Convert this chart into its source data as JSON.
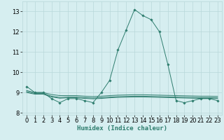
{
  "x": [
    0,
    1,
    2,
    3,
    4,
    5,
    6,
    7,
    8,
    9,
    10,
    11,
    12,
    13,
    14,
    15,
    16,
    17,
    18,
    19,
    20,
    21,
    22,
    23
  ],
  "y_main": [
    9.3,
    9.0,
    9.0,
    8.7,
    8.5,
    8.7,
    8.7,
    8.6,
    8.5,
    9.0,
    9.6,
    11.1,
    12.1,
    13.1,
    12.8,
    12.6,
    12.0,
    10.4,
    8.6,
    8.5,
    8.6,
    8.7,
    8.7,
    8.6
  ],
  "y_flat1": [
    9.1,
    9.0,
    9.0,
    8.9,
    8.85,
    8.85,
    8.85,
    8.82,
    8.8,
    8.82,
    8.85,
    8.87,
    8.88,
    8.89,
    8.89,
    8.88,
    8.87,
    8.86,
    8.85,
    8.84,
    8.83,
    8.82,
    8.82,
    8.81
  ],
  "y_flat2": [
    9.05,
    8.95,
    8.95,
    8.82,
    8.76,
    8.78,
    8.78,
    8.75,
    8.73,
    8.75,
    8.78,
    8.8,
    8.81,
    8.82,
    8.82,
    8.81,
    8.8,
    8.79,
    8.78,
    8.77,
    8.76,
    8.75,
    8.75,
    8.74
  ],
  "y_flat3": [
    9.0,
    8.92,
    8.92,
    8.78,
    8.72,
    8.74,
    8.74,
    8.71,
    8.69,
    8.71,
    8.74,
    8.76,
    8.77,
    8.78,
    8.78,
    8.77,
    8.76,
    8.75,
    8.74,
    8.73,
    8.72,
    8.71,
    8.71,
    8.7
  ],
  "line_color": "#2e7d6e",
  "marker": "D",
  "marker_size": 1.8,
  "bg_color": "#d6eef0",
  "grid_color": "#b8d8da",
  "xlabel": "Humidex (Indice chaleur)",
  "ylim": [
    7.9,
    13.5
  ],
  "xlim": [
    -0.5,
    23.5
  ],
  "yticks": [
    8,
    9,
    10,
    11,
    12,
    13
  ],
  "xticks": [
    0,
    1,
    2,
    3,
    4,
    5,
    6,
    7,
    8,
    9,
    10,
    11,
    12,
    13,
    14,
    15,
    16,
    17,
    18,
    19,
    20,
    21,
    22,
    23
  ],
  "label_fontsize": 6.5,
  "tick_fontsize": 6.0
}
